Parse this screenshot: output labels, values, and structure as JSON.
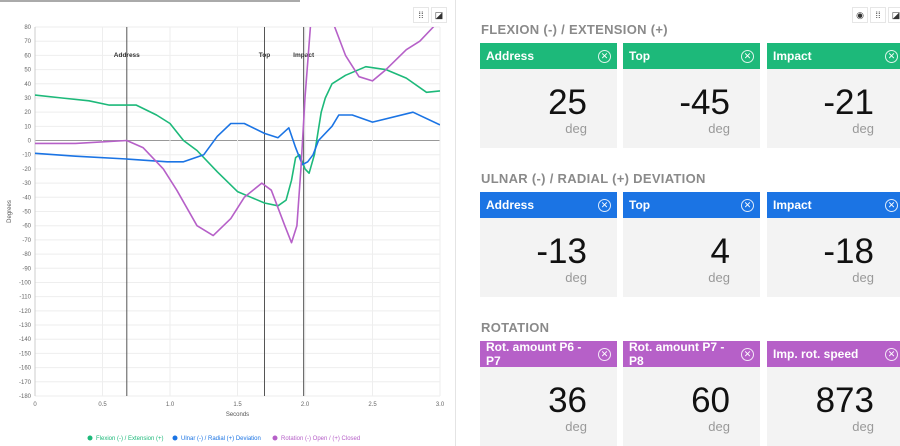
{
  "colors": {
    "flexion": "#1db97a",
    "ulnar": "#1b74e4",
    "rotation": "#b660c8"
  },
  "chart_data": {
    "type": "line",
    "xlabel": "Seconds",
    "ylabel": "Degrees",
    "xlim": [
      0,
      3.0
    ],
    "ylim": [
      -180,
      80
    ],
    "xticks": [
      "0",
      "0.5",
      "1.0",
      "1.5",
      "2.0",
      "2.5",
      "3.0"
    ],
    "yticks": [
      80,
      70,
      60,
      50,
      40,
      30,
      20,
      10,
      0,
      -10,
      -20,
      -30,
      -40,
      -50,
      -60,
      -70,
      -80,
      -90,
      -100,
      -110,
      -120,
      -130,
      -140,
      -150,
      -160,
      -170,
      -180
    ],
    "markers": [
      {
        "label": "Address",
        "x": 0.68
      },
      {
        "label": "Top",
        "x": 1.7
      },
      {
        "label": "Impact",
        "x": 1.99
      }
    ],
    "legend_position": "bottom",
    "series": [
      {
        "name": "Flexion (-) / Extension (+)",
        "color": "#1db97a",
        "points": [
          [
            0,
            32
          ],
          [
            0.2,
            30
          ],
          [
            0.4,
            28
          ],
          [
            0.55,
            25
          ],
          [
            0.68,
            25
          ],
          [
            0.75,
            25
          ],
          [
            0.9,
            18
          ],
          [
            1.0,
            12
          ],
          [
            1.1,
            0
          ],
          [
            1.2,
            -7
          ],
          [
            1.35,
            -22
          ],
          [
            1.5,
            -36
          ],
          [
            1.6,
            -40
          ],
          [
            1.7,
            -44
          ],
          [
            1.8,
            -46
          ],
          [
            1.86,
            -42
          ],
          [
            1.9,
            -28
          ],
          [
            1.93,
            -12
          ],
          [
            1.96,
            -10
          ],
          [
            2.0,
            -20
          ],
          [
            2.03,
            -23
          ],
          [
            2.07,
            -10
          ],
          [
            2.12,
            20
          ],
          [
            2.15,
            30
          ],
          [
            2.2,
            40
          ],
          [
            2.3,
            46
          ],
          [
            2.45,
            52
          ],
          [
            2.6,
            50
          ],
          [
            2.75,
            44
          ],
          [
            2.9,
            34
          ],
          [
            3.0,
            35
          ]
        ]
      },
      {
        "name": "Ulnar (-) / Radial (+) Deviation",
        "color": "#1b74e4",
        "points": [
          [
            0,
            -9
          ],
          [
            0.3,
            -11
          ],
          [
            0.68,
            -13
          ],
          [
            0.98,
            -15
          ],
          [
            1.1,
            -15
          ],
          [
            1.25,
            -10
          ],
          [
            1.35,
            3
          ],
          [
            1.45,
            12
          ],
          [
            1.55,
            12
          ],
          [
            1.7,
            5
          ],
          [
            1.8,
            2
          ],
          [
            1.88,
            9
          ],
          [
            1.93,
            -5
          ],
          [
            1.98,
            -17
          ],
          [
            2.02,
            -15
          ],
          [
            2.06,
            -10
          ],
          [
            2.1,
            0
          ],
          [
            2.2,
            10
          ],
          [
            2.25,
            18
          ],
          [
            2.35,
            18
          ],
          [
            2.5,
            13
          ],
          [
            2.8,
            20
          ],
          [
            3.0,
            11
          ]
        ]
      },
      {
        "name": "Rotation (-) Open / (+) Closed",
        "color": "#b660c8",
        "points": [
          [
            0,
            -2
          ],
          [
            0.3,
            -2
          ],
          [
            0.68,
            0
          ],
          [
            0.8,
            -5
          ],
          [
            0.95,
            -20
          ],
          [
            1.05,
            -35
          ],
          [
            1.2,
            -60
          ],
          [
            1.32,
            -67
          ],
          [
            1.45,
            -55
          ],
          [
            1.55,
            -40
          ],
          [
            1.68,
            -30
          ],
          [
            1.75,
            -35
          ],
          [
            1.85,
            -60
          ],
          [
            1.9,
            -72
          ],
          [
            1.94,
            -60
          ],
          [
            1.97,
            -20
          ],
          [
            2.0,
            30
          ],
          [
            2.04,
            80
          ],
          [
            2.05,
            95
          ]
        ],
        "points2": [
          [
            2.2,
            85
          ],
          [
            2.3,
            60
          ],
          [
            2.4,
            45
          ],
          [
            2.5,
            42
          ],
          [
            2.6,
            50
          ],
          [
            2.75,
            64
          ],
          [
            2.85,
            70
          ],
          [
            2.95,
            80
          ],
          [
            2.98,
            85
          ]
        ]
      }
    ]
  },
  "sections": [
    {
      "title": "FLEXION (-) / EXTENSION (+)",
      "color": "#1db97a",
      "cards": [
        {
          "label": "Address",
          "value": "25",
          "unit": "deg"
        },
        {
          "label": "Top",
          "value": "-45",
          "unit": "deg"
        },
        {
          "label": "Impact",
          "value": "-21",
          "unit": "deg"
        }
      ]
    },
    {
      "title": "ULNAR (-) / RADIAL (+) DEVIATION",
      "color": "#1b74e4",
      "cards": [
        {
          "label": "Address",
          "value": "-13",
          "unit": "deg"
        },
        {
          "label": "Top",
          "value": "4",
          "unit": "deg"
        },
        {
          "label": "Impact",
          "value": "-18",
          "unit": "deg"
        }
      ]
    },
    {
      "title": "ROTATION",
      "color": "#b660c8",
      "cards": [
        {
          "label": "Rot. amount P6 - P7",
          "value": "36",
          "unit": "deg"
        },
        {
          "label": "Rot. amount P7 - P8",
          "value": "60",
          "unit": "deg"
        },
        {
          "label": "Imp. rot. speed",
          "value": "873",
          "unit": "deg"
        }
      ]
    }
  ]
}
